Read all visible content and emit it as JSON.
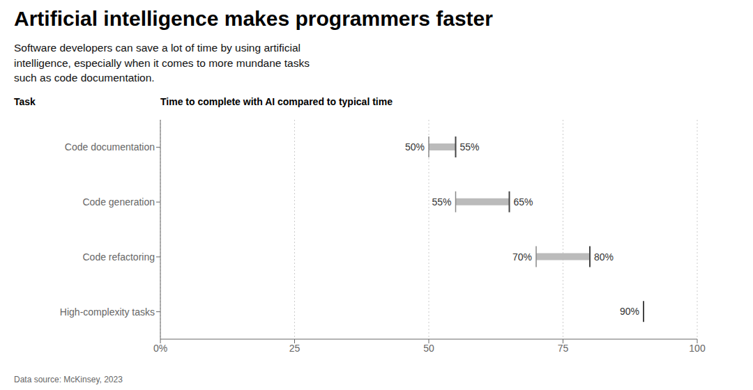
{
  "chart_data": {
    "type": "range_bar",
    "orientation": "horizontal",
    "title": "Artificial intelligence makes programmers faster",
    "subtitle": "Software developers can save a lot of time by using artificial\nintelligence, especially when it comes to more mundane tasks\nsuch as code documentation.",
    "ylabel": "Task",
    "xlabel": "Time to complete with AI compared to typical time",
    "source": "Data source: McKinsey, 2023",
    "categories": [
      "Code documentation",
      "Code generation",
      "Code refactoring",
      "High-complexity tasks"
    ],
    "series": [
      {
        "values": [
          50,
          55,
          70,
          90
        ],
        "value_labels": [
          "50%",
          "55%",
          "70%",
          "90%"
        ],
        "color": "#888888"
      },
      {
        "values": [
          55,
          65,
          80,
          null
        ],
        "value_labels": [
          "55%",
          "65%",
          "80%",
          null
        ],
        "color": "#444444"
      }
    ],
    "color": "#BBBBBB",
    "xlim": [
      0,
      100
    ],
    "xticks": [
      {
        "value": 0,
        "label": "0%"
      },
      25,
      50,
      75,
      100
    ],
    "grid": true,
    "data_labels": true
  }
}
